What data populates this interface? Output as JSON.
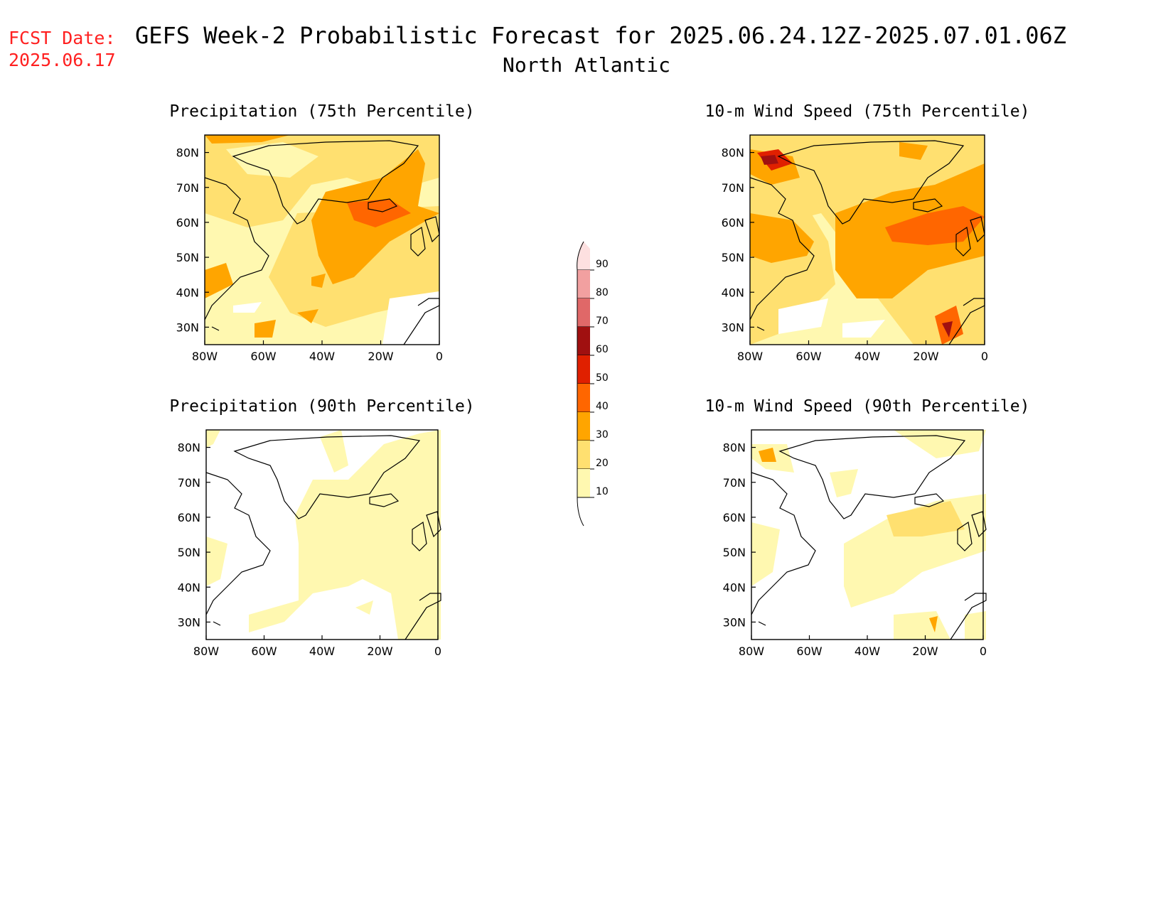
{
  "header": {
    "fcst_label": "FCST Date:",
    "fcst_date": "2025.06.17",
    "title": "GEFS Week-2 Probabilistic Forecast for 2025.06.24.12Z-2025.07.01.06Z",
    "region": "North Atlantic",
    "title_color": "#000000",
    "fcst_color": "#ff2020"
  },
  "axes": {
    "lat_ticks": [
      "80N",
      "70N",
      "60N",
      "50N",
      "40N",
      "30N"
    ],
    "lat_values": [
      80,
      70,
      60,
      50,
      40,
      30
    ],
    "lon_ticks": [
      "80W",
      "60W",
      "40W",
      "20W",
      "0"
    ],
    "lon_values": [
      -80,
      -60,
      -40,
      -20,
      0
    ],
    "lat_range": [
      25,
      85
    ],
    "lon_range": [
      -80,
      0
    ]
  },
  "panels": [
    {
      "id": "precip-75",
      "title": "Precipitation (75th Percentile)",
      "level_pattern": "p75"
    },
    {
      "id": "wind-75",
      "title": "10-m Wind Speed (75th Percentile)",
      "level_pattern": "w75"
    },
    {
      "id": "precip-90",
      "title": "Precipitation (90th Percentile)",
      "level_pattern": "p90"
    },
    {
      "id": "wind-90",
      "title": "10-m Wind Speed (90th Percentile)",
      "level_pattern": "w90"
    }
  ],
  "colorbar": {
    "labels": [
      "90",
      "80",
      "70",
      "60",
      "50",
      "40",
      "30",
      "20",
      "10"
    ],
    "values": [
      90,
      80,
      70,
      60,
      50,
      40,
      30,
      20,
      10
    ],
    "colors": [
      "#fde0e0",
      "#f2a0a0",
      "#e06868",
      "#a01010",
      "#e02000",
      "#ff6600",
      "#ffa500",
      "#ffe070",
      "#fff8b0"
    ]
  }
}
